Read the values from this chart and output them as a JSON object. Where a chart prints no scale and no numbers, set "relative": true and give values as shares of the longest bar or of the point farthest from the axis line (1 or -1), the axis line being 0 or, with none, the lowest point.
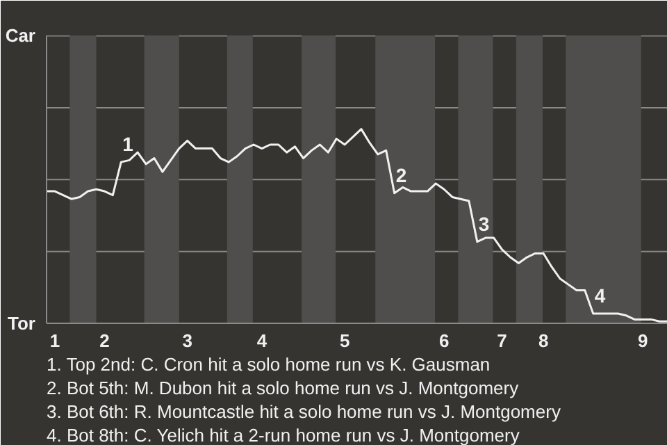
{
  "chart_data": {
    "type": "line",
    "relative": true,
    "categories": [
      null,
      "1",
      null,
      null,
      null,
      null,
      null,
      "2",
      null,
      null,
      null,
      null,
      null,
      null,
      null,
      null,
      null,
      "3",
      null,
      null,
      null,
      null,
      null,
      null,
      null,
      null,
      "4",
      null,
      null,
      null,
      null,
      null,
      null,
      null,
      null,
      null,
      "5",
      null,
      null,
      null,
      null,
      null,
      null,
      null,
      null,
      null,
      null,
      null,
      "6",
      null,
      null,
      null,
      null,
      null,
      null,
      "7",
      null,
      null,
      null,
      null,
      "8",
      null,
      null,
      null,
      null,
      null,
      null,
      null,
      null,
      null,
      null,
      null,
      "9",
      null,
      null,
      null
    ],
    "series": [
      {
        "color": "#f0f0f0",
        "values": [
          0.68,
          0.68,
          0.66,
          0.64,
          0.65,
          0.68,
          0.69,
          0.68,
          0.66,
          0.83,
          0.84,
          0.88,
          0.82,
          0.85,
          0.78,
          0.84,
          0.9,
          0.94,
          0.9,
          0.9,
          0.9,
          0.85,
          0.83,
          0.86,
          0.9,
          0.92,
          0.9,
          0.92,
          0.92,
          0.88,
          0.91,
          0.85,
          0.89,
          0.92,
          0.88,
          0.95,
          0.92,
          0.96,
          1.0,
          0.93,
          0.87,
          0.89,
          0.67,
          0.7,
          0.68,
          0.68,
          0.68,
          0.72,
          0.69,
          0.65,
          0.64,
          0.63,
          0.42,
          0.44,
          0.44,
          0.38,
          0.34,
          0.31,
          0.34,
          0.36,
          0.36,
          0.29,
          0.23,
          0.2,
          0.17,
          0.17,
          0.05,
          0.05,
          0.05,
          0.05,
          0.04,
          0.02,
          0.02,
          0.02,
          0.01,
          0.01
        ]
      }
    ],
    "ref_lines": [
      {
        "axis": "y",
        "value": 0.37
      },
      {
        "axis": "y",
        "value": 0.74
      },
      {
        "axis": "y",
        "value": 1.11
      },
      {
        "axis": "y",
        "value": 1.48
      }
    ],
    "annotations": [
      "Car",
      "Tor",
      {
        "text": "1",
        "y": 0.83
      },
      {
        "text": "2",
        "y": 0.67
      },
      {
        "text": "3",
        "y": 0.42
      },
      {
        "text": "4",
        "y": 0.05
      },
      "1. Top 2nd: C. Cron hit a solo home run vs K. Gausman",
      "2. Bot 5th: M. Dubon hit a solo home run vs J. Montgomery",
      "3. Bot 6th: R. Mountcastle hit a solo home run vs J. Montgomery",
      "4. Bot 8th: C. Yelich hit a 2-run home run vs J. Montgomery"
    ]
  }
}
